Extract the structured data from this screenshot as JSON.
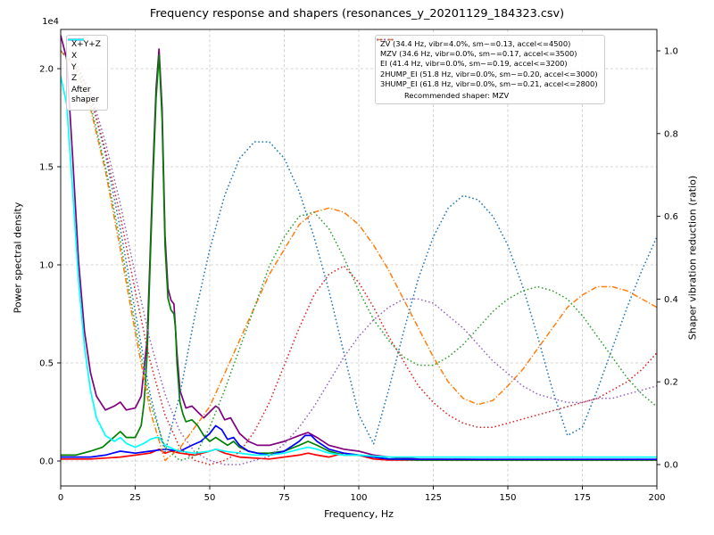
{
  "title": "Frequency response and shapers (resonances_y_20201129_184323.csv)",
  "xlabel": "Frequency, Hz",
  "ylabel_left": "Power spectral density",
  "ylabel_right": "Shaper vibration reduction (ratio)",
  "offset_text": "1e4",
  "legend_psd": [
    {
      "label": "X+Y+Z",
      "color": "#800080",
      "style": "solid"
    },
    {
      "label": "X",
      "color": "#ff0000",
      "style": "solid"
    },
    {
      "label": "Y",
      "color": "#008000",
      "style": "solid"
    },
    {
      "label": "Z",
      "color": "#0000ff",
      "style": "solid"
    },
    {
      "label": "After\nshaper",
      "color": "#00ffff",
      "style": "solid"
    }
  ],
  "legend_shapers": {
    "entries": [
      {
        "label": "ZV (34.4 Hz, vibr=4.0%, sm~=0.13, accel<=4500)",
        "color": "#1f77b4",
        "style": "dotted"
      },
      {
        "label": "MZV (34.6 Hz, vibr=0.0%, sm~=0.17, accel<=3500)",
        "color": "#ff7f0e",
        "style": "dashdot"
      },
      {
        "label": "EI (41.4 Hz, vibr=0.0%, sm~=0.19, accel<=3200)",
        "color": "#2ca02c",
        "style": "dotted"
      },
      {
        "label": "2HUMP_EI (51.8 Hz, vibr=0.0%, sm~=0.20, accel<=3000)",
        "color": "#d62728",
        "style": "dotted"
      },
      {
        "label": "3HUMP_EI (61.8 Hz, vibr=0.0%, sm~=0.21, accel<=2800)",
        "color": "#9467bd",
        "style": "dotted"
      }
    ],
    "note": "Recommended shaper: MZV"
  },
  "chart_data": {
    "type": "line",
    "title": "Frequency response and shapers (resonances_y_20201129_184323.csv)",
    "xlabel": "Frequency, Hz",
    "ylabel": "Power spectral density",
    "ylabel2": "Shaper vibration reduction (ratio)",
    "xlim": [
      0,
      200
    ],
    "ylim_left": [
      0,
      22000
    ],
    "ylim_right": [
      0,
      1.0
    ],
    "y_left_multiplier": 10000,
    "grid": true,
    "legend_positions": [
      "upper left",
      "upper right"
    ],
    "recommended_shaper": "MZV",
    "x_ticks": [
      0,
      25,
      50,
      75,
      100,
      125,
      150,
      175,
      200
    ],
    "x_tick_labels": [
      "0",
      "25",
      "50",
      "75",
      "100",
      "125",
      "150",
      "175",
      "200"
    ],
    "y_ticks_left": [
      0.0,
      0.5,
      1.0,
      1.5,
      2.0
    ],
    "y_tick_labels_left": [
      "0.0",
      "0.5",
      "1.0",
      "1.5",
      "2.0"
    ],
    "y_ticks_right": [
      0.0,
      0.2,
      0.4,
      0.6,
      0.8,
      1.0
    ],
    "y_tick_labels_right": [
      "0.0",
      "0.2",
      "0.4",
      "0.6",
      "0.8",
      "1.0"
    ],
    "psd_series": [
      {
        "name": "X+Y+Z",
        "color": "#800080",
        "x": [
          0,
          2,
          4,
          6,
          8,
          10,
          12,
          15,
          18,
          20,
          22,
          25,
          27,
          29,
          30,
          31,
          32,
          33,
          34,
          35,
          36,
          37,
          38,
          39,
          40,
          42,
          44,
          46,
          48,
          50,
          52,
          53,
          55,
          57,
          60,
          63,
          66,
          70,
          75,
          80,
          83,
          86,
          90,
          95,
          100,
          105,
          110,
          120,
          140,
          160,
          180,
          200
        ],
        "y": [
          2.17,
          2.05,
          1.55,
          1.02,
          0.66,
          0.45,
          0.33,
          0.26,
          0.28,
          0.3,
          0.26,
          0.27,
          0.33,
          0.62,
          1.05,
          1.5,
          1.9,
          2.1,
          1.8,
          1.15,
          0.88,
          0.82,
          0.8,
          0.55,
          0.36,
          0.27,
          0.28,
          0.25,
          0.22,
          0.25,
          0.28,
          0.27,
          0.21,
          0.22,
          0.14,
          0.1,
          0.08,
          0.08,
          0.1,
          0.13,
          0.145,
          0.12,
          0.08,
          0.06,
          0.05,
          0.03,
          0.02,
          0.01,
          0.008,
          0.008,
          0.008,
          0.008
        ]
      },
      {
        "name": "X",
        "color": "#ff0000",
        "x": [
          0,
          10,
          20,
          30,
          33,
          35,
          37,
          40,
          45,
          50,
          52,
          55,
          60,
          70,
          80,
          83,
          86,
          90,
          95,
          100,
          105,
          110,
          120,
          140,
          160,
          180,
          200
        ],
        "y": [
          0.01,
          0.01,
          0.02,
          0.04,
          0.06,
          0.04,
          0.05,
          0.04,
          0.03,
          0.05,
          0.06,
          0.04,
          0.02,
          0.01,
          0.03,
          0.04,
          0.03,
          0.02,
          0.04,
          0.03,
          0.01,
          0.005,
          0.005,
          0.005,
          0.005,
          0.005,
          0.005
        ]
      },
      {
        "name": "Y",
        "color": "#008000",
        "x": [
          0,
          5,
          10,
          14,
          17,
          20,
          22,
          25,
          27,
          28,
          29,
          30,
          31,
          32,
          33,
          34,
          35,
          36,
          37,
          38,
          38.5,
          39,
          40,
          41,
          42,
          44,
          46,
          48,
          50,
          52,
          54,
          56,
          58,
          60,
          63,
          66,
          70,
          75,
          80,
          83,
          86,
          90,
          95,
          100,
          105,
          110,
          120,
          140,
          160,
          180,
          200
        ],
        "y": [
          0.03,
          0.03,
          0.05,
          0.07,
          0.11,
          0.15,
          0.12,
          0.12,
          0.18,
          0.3,
          0.55,
          1.0,
          1.45,
          1.85,
          2.07,
          1.75,
          1.1,
          0.83,
          0.77,
          0.75,
          0.68,
          0.5,
          0.3,
          0.24,
          0.2,
          0.21,
          0.18,
          0.13,
          0.1,
          0.12,
          0.1,
          0.08,
          0.1,
          0.07,
          0.05,
          0.04,
          0.04,
          0.05,
          0.08,
          0.1,
          0.08,
          0.05,
          0.03,
          0.03,
          0.02,
          0.01,
          0.005,
          0.005,
          0.005,
          0.005,
          0.005
        ]
      },
      {
        "name": "Z",
        "color": "#0000ff",
        "x": [
          0,
          10,
          15,
          20,
          25,
          30,
          35,
          40,
          44,
          47,
          50,
          52,
          54,
          56,
          58,
          60,
          63,
          66,
          70,
          75,
          80,
          82,
          84,
          86,
          90,
          95,
          100,
          105,
          110,
          120,
          140,
          160,
          180,
          200
        ],
        "y": [
          0.02,
          0.02,
          0.03,
          0.05,
          0.04,
          0.05,
          0.06,
          0.05,
          0.08,
          0.1,
          0.14,
          0.18,
          0.16,
          0.11,
          0.12,
          0.08,
          0.05,
          0.04,
          0.03,
          0.05,
          0.1,
          0.13,
          0.13,
          0.1,
          0.06,
          0.04,
          0.03,
          0.02,
          0.01,
          0.008,
          0.008,
          0.008,
          0.008,
          0.008
        ]
      },
      {
        "name": "After shaper",
        "color": "#00ffff",
        "x": [
          0,
          2,
          4,
          6,
          8,
          10,
          12,
          15,
          18,
          20,
          22,
          25,
          28,
          30,
          32,
          33,
          35,
          38,
          40,
          45,
          50,
          52,
          55,
          60,
          65,
          70,
          75,
          80,
          83,
          86,
          90,
          95,
          100,
          110,
          120,
          140,
          160,
          180,
          200
        ],
        "y": [
          1.96,
          1.82,
          1.38,
          0.92,
          0.58,
          0.36,
          0.22,
          0.13,
          0.1,
          0.12,
          0.09,
          0.07,
          0.09,
          0.11,
          0.12,
          0.12,
          0.08,
          0.06,
          0.05,
          0.04,
          0.05,
          0.06,
          0.05,
          0.04,
          0.03,
          0.03,
          0.04,
          0.06,
          0.07,
          0.06,
          0.04,
          0.03,
          0.03,
          0.02,
          0.02,
          0.02,
          0.02,
          0.02,
          0.02
        ]
      }
    ],
    "shaper_x": [
      0,
      5,
      10,
      15,
      20,
      25,
      30,
      35,
      40,
      45,
      50,
      55,
      60,
      65,
      70,
      75,
      80,
      85,
      90,
      95,
      100,
      105,
      110,
      115,
      120,
      125,
      130,
      135,
      140,
      145,
      150,
      155,
      160,
      165,
      170,
      175,
      180,
      185,
      190,
      195,
      200
    ],
    "shaper_series": [
      {
        "name": "ZV",
        "freq_hz": 34.4,
        "vibr_pct": 4.0,
        "smoothing": 0.13,
        "max_accel": 4500,
        "color": "#1f77b4",
        "style": "dotted",
        "y": [
          1.0,
          0.97,
          0.89,
          0.75,
          0.57,
          0.37,
          0.17,
          0.03,
          0.17,
          0.36,
          0.52,
          0.65,
          0.74,
          0.78,
          0.78,
          0.74,
          0.66,
          0.55,
          0.42,
          0.27,
          0.12,
          0.05,
          0.18,
          0.32,
          0.45,
          0.55,
          0.62,
          0.65,
          0.64,
          0.6,
          0.53,
          0.43,
          0.31,
          0.18,
          0.07,
          0.09,
          0.18,
          0.28,
          0.38,
          0.47,
          0.55
        ]
      },
      {
        "name": "MZV",
        "freq_hz": 34.6,
        "vibr_pct": 0.0,
        "smoothing": 0.17,
        "max_accel": 3500,
        "color": "#ff7f0e",
        "style": "dashdot",
        "y": [
          1.0,
          0.96,
          0.86,
          0.71,
          0.52,
          0.32,
          0.13,
          0.01,
          0.04,
          0.09,
          0.14,
          0.22,
          0.3,
          0.38,
          0.46,
          0.52,
          0.58,
          0.61,
          0.62,
          0.61,
          0.58,
          0.53,
          0.47,
          0.4,
          0.33,
          0.26,
          0.2,
          0.16,
          0.145,
          0.155,
          0.19,
          0.23,
          0.28,
          0.33,
          0.38,
          0.41,
          0.43,
          0.43,
          0.42,
          0.4,
          0.38
        ]
      },
      {
        "name": "EI",
        "freq_hz": 41.4,
        "vibr_pct": 0.0,
        "smoothing": 0.19,
        "max_accel": 3200,
        "color": "#2ca02c",
        "style": "dotted",
        "y": [
          1.0,
          0.96,
          0.87,
          0.72,
          0.54,
          0.34,
          0.15,
          0.04,
          0.01,
          0.02,
          0.09,
          0.18,
          0.28,
          0.38,
          0.48,
          0.55,
          0.6,
          0.61,
          0.57,
          0.5,
          0.42,
          0.35,
          0.3,
          0.26,
          0.24,
          0.24,
          0.26,
          0.29,
          0.33,
          0.37,
          0.4,
          0.42,
          0.43,
          0.42,
          0.4,
          0.36,
          0.31,
          0.26,
          0.21,
          0.17,
          0.14
        ]
      },
      {
        "name": "2HUMP_EI",
        "freq_hz": 51.8,
        "vibr_pct": 0.0,
        "smoothing": 0.2,
        "max_accel": 3000,
        "color": "#d62728",
        "style": "dotted",
        "y": [
          1.0,
          0.97,
          0.89,
          0.76,
          0.6,
          0.42,
          0.25,
          0.12,
          0.04,
          0.01,
          0.0,
          0.01,
          0.03,
          0.08,
          0.15,
          0.24,
          0.33,
          0.41,
          0.46,
          0.48,
          0.44,
          0.38,
          0.31,
          0.25,
          0.19,
          0.15,
          0.12,
          0.1,
          0.09,
          0.09,
          0.1,
          0.11,
          0.12,
          0.13,
          0.14,
          0.15,
          0.16,
          0.18,
          0.2,
          0.23,
          0.27
        ]
      },
      {
        "name": "3HUMP_EI",
        "freq_hz": 61.8,
        "vibr_pct": 0.0,
        "smoothing": 0.21,
        "max_accel": 2800,
        "color": "#9467bd",
        "style": "dotted",
        "y": [
          1.0,
          0.97,
          0.9,
          0.78,
          0.63,
          0.46,
          0.3,
          0.17,
          0.08,
          0.03,
          0.01,
          0.0,
          0.0,
          0.01,
          0.02,
          0.05,
          0.09,
          0.14,
          0.2,
          0.26,
          0.31,
          0.35,
          0.38,
          0.4,
          0.4,
          0.39,
          0.36,
          0.33,
          0.29,
          0.25,
          0.22,
          0.19,
          0.17,
          0.16,
          0.15,
          0.15,
          0.16,
          0.16,
          0.17,
          0.18,
          0.19
        ]
      }
    ]
  }
}
